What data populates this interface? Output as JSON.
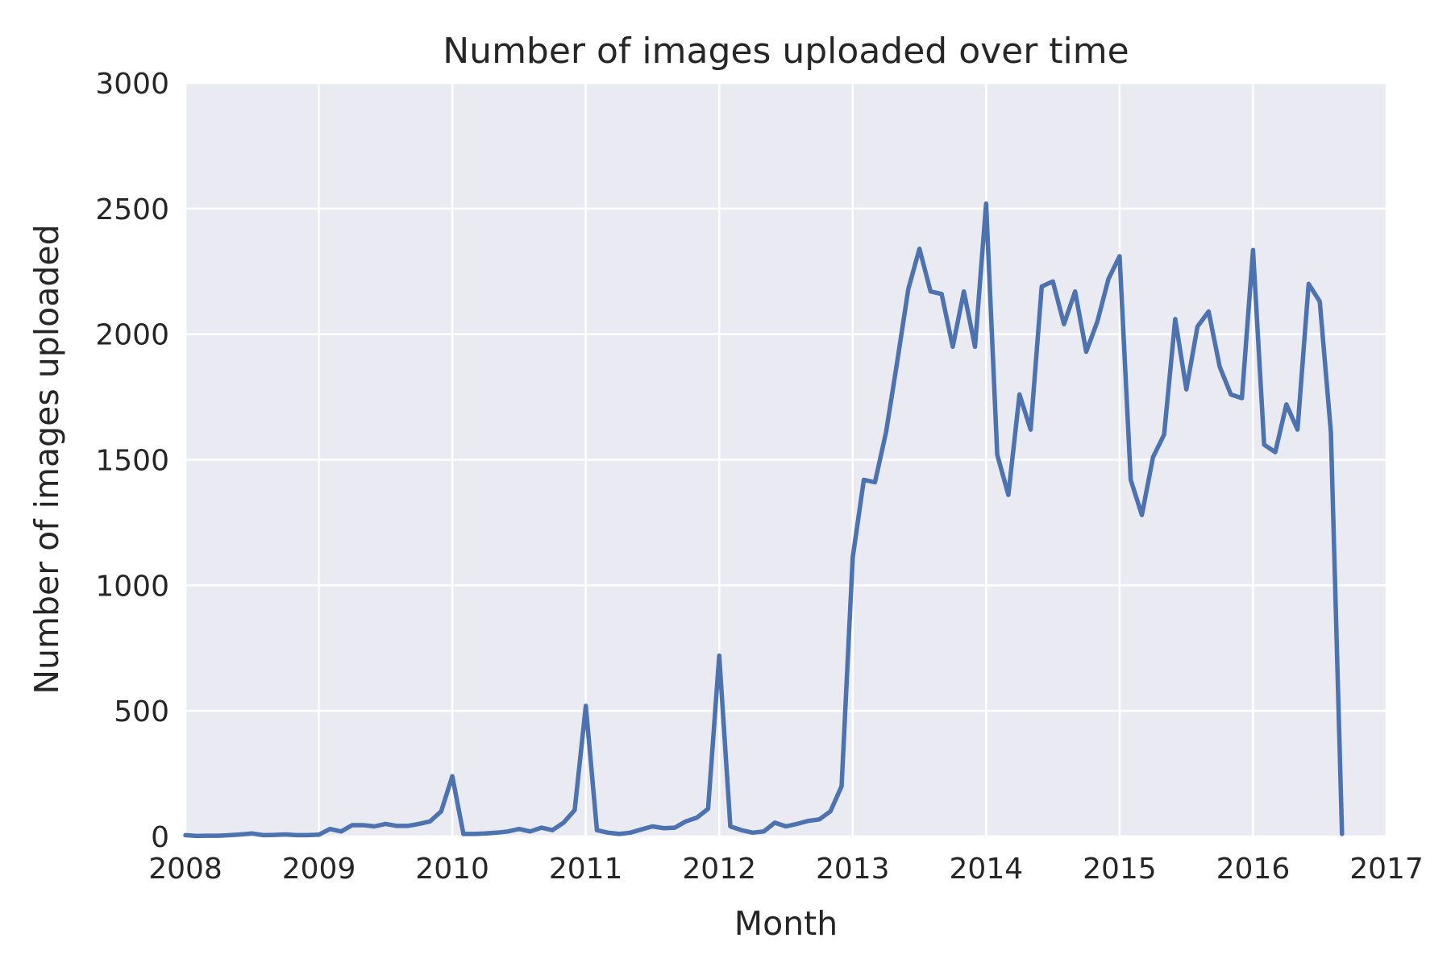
{
  "chart_data": {
    "type": "line",
    "title": "Number of images uploaded over time",
    "xlabel": "Month",
    "ylabel": "Number of images uploaded",
    "x_axis": "time",
    "xlim": [
      "2008-01",
      "2017-01"
    ],
    "ylim": [
      0,
      3000
    ],
    "x_ticks": [
      "2008",
      "2009",
      "2010",
      "2011",
      "2012",
      "2013",
      "2014",
      "2015",
      "2016",
      "2017"
    ],
    "y_ticks": [
      0,
      500,
      1000,
      1500,
      2000,
      2500,
      3000
    ],
    "grid": true,
    "colors": {
      "background": "#eaeaf2",
      "grid": "#ffffff",
      "series": "#4c72b0"
    },
    "series": [
      {
        "x": [
          "2008-01",
          "2008-02",
          "2008-03",
          "2008-04",
          "2008-05",
          "2008-06",
          "2008-07",
          "2008-08",
          "2008-09",
          "2008-10",
          "2008-11",
          "2008-12",
          "2009-01",
          "2009-02",
          "2009-03",
          "2009-04",
          "2009-05",
          "2009-06",
          "2009-07",
          "2009-08",
          "2009-09",
          "2009-10",
          "2009-11",
          "2009-12",
          "2010-01",
          "2010-02",
          "2010-03",
          "2010-04",
          "2010-05",
          "2010-06",
          "2010-07",
          "2010-08",
          "2010-09",
          "2010-10",
          "2010-11",
          "2010-12",
          "2011-01",
          "2011-02",
          "2011-03",
          "2011-04",
          "2011-05",
          "2011-06",
          "2011-07",
          "2011-08",
          "2011-09",
          "2011-10",
          "2011-11",
          "2011-12",
          "2012-01",
          "2012-02",
          "2012-03",
          "2012-04",
          "2012-05",
          "2012-06",
          "2012-07",
          "2012-08",
          "2012-09",
          "2012-10",
          "2012-11",
          "2012-12",
          "2013-01",
          "2013-02",
          "2013-03",
          "2013-04",
          "2013-05",
          "2013-06",
          "2013-07",
          "2013-08",
          "2013-09",
          "2013-10",
          "2013-11",
          "2013-12",
          "2014-01",
          "2014-02",
          "2014-03",
          "2014-04",
          "2014-05",
          "2014-06",
          "2014-07",
          "2014-08",
          "2014-09",
          "2014-10",
          "2014-11",
          "2014-12",
          "2015-01",
          "2015-02",
          "2015-03",
          "2015-04",
          "2015-05",
          "2015-06",
          "2015-07",
          "2015-08",
          "2015-09",
          "2015-10",
          "2015-11",
          "2015-12",
          "2016-01",
          "2016-02",
          "2016-03",
          "2016-04",
          "2016-05",
          "2016-06",
          "2016-07",
          "2016-08",
          "2016-09"
        ],
        "values": [
          5,
          2,
          3,
          3,
          5,
          8,
          12,
          5,
          6,
          8,
          5,
          5,
          7,
          30,
          20,
          45,
          45,
          40,
          50,
          42,
          42,
          50,
          60,
          100,
          240,
          10,
          10,
          12,
          15,
          20,
          30,
          20,
          35,
          25,
          55,
          105,
          520,
          25,
          15,
          10,
          15,
          28,
          40,
          33,
          35,
          60,
          75,
          110,
          720,
          40,
          25,
          15,
          20,
          55,
          40,
          50,
          62,
          68,
          100,
          200,
          1110,
          1420,
          1410,
          1610,
          1890,
          2180,
          2340,
          2170,
          2160,
          1950,
          2170,
          1950,
          2520,
          1520,
          1360,
          1760,
          1620,
          2190,
          2210,
          2040,
          2170,
          1930,
          2050,
          2220,
          2310,
          1420,
          1280,
          1510,
          1600,
          2060,
          1780,
          2030,
          2090,
          1870,
          1760,
          1745,
          2335,
          1560,
          1530,
          1720,
          1620,
          2200,
          2130,
          1610,
          10
        ]
      }
    ]
  }
}
